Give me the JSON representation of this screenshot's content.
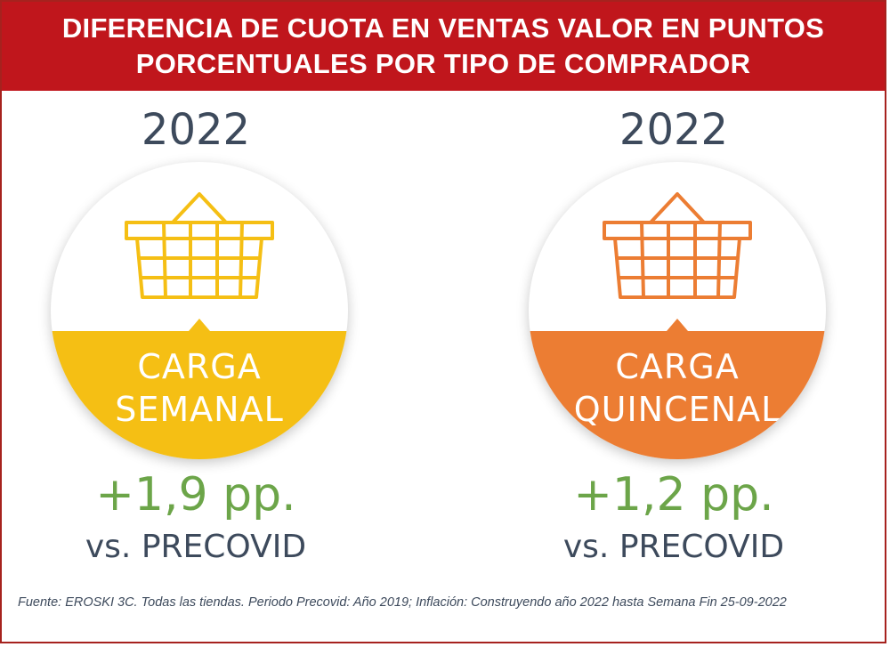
{
  "header": {
    "title_line1": "DIFERENCIA DE CUOTA EN VENTAS VALOR EN PUNTOS",
    "title_line2": "PORCENTUALES POR TIPO DE COMPRADOR"
  },
  "panels": [
    {
      "year": "2022",
      "label_line1": "CARGA",
      "label_line2": "SEMANAL",
      "value": "+1,9 pp.",
      "comparison": "vs. PRECOVID",
      "color": "#f5bf14",
      "icon": "basket-icon"
    },
    {
      "year": "2022",
      "label_line1": "CARGA",
      "label_line2": "QUINCENAL",
      "value": "+1,2 pp.",
      "comparison": "vs. PRECOVID",
      "color": "#ec7d33",
      "icon": "basket-icon"
    }
  ],
  "footer": {
    "source": "Fuente: EROSKI 3C. Todas las tiendas. Periodo Precovid: Año 2019; Inflación: Construyendo año 2022 hasta Semana Fin 25-09-2022"
  },
  "colors": {
    "header_bg": "#c0161c",
    "value_green": "#6ca549",
    "text_dark": "#3d4a5c"
  }
}
